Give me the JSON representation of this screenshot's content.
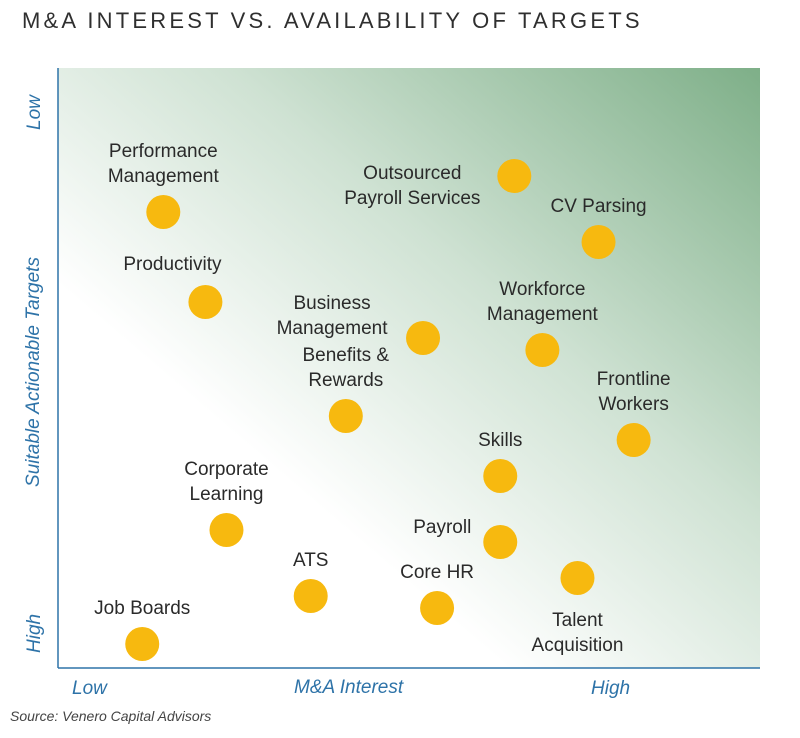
{
  "chart_data": {
    "type": "scatter",
    "title": "M&A INTEREST VS. AVAILABILITY OF TARGETS",
    "xlabel": "M&A Interest",
    "ylabel": "Suitable Actionable Targets",
    "x_tick_labels": {
      "low": "Low",
      "high": "High"
    },
    "y_tick_labels": {
      "top": "Low",
      "bottom": "High"
    },
    "xlim": [
      0,
      100
    ],
    "ylim": [
      0,
      100
    ],
    "y_axis_direction": "top is Low, bottom is High",
    "marker_color": "#f7b90f",
    "background_gradient": [
      "#ffffff",
      "#7eaf88"
    ],
    "axis_color": "#2e73a8",
    "points": [
      {
        "label": "Performance Management",
        "label_lines": [
          "Performance",
          "Management"
        ],
        "x": 15,
        "y": 76,
        "label_pos": "above"
      },
      {
        "label": "Outsourced Payroll Services",
        "label_lines": [
          "Outsourced",
          "Payroll Services"
        ],
        "x": 65,
        "y": 82,
        "label_pos": "left"
      },
      {
        "label": "CV Parsing",
        "label_lines": [
          "CV Parsing"
        ],
        "x": 77,
        "y": 71,
        "label_pos": "above"
      },
      {
        "label": "Productivity",
        "label_lines": [
          "Productivity"
        ],
        "x": 21,
        "y": 61,
        "label_pos": "above-left"
      },
      {
        "label": "Business Management",
        "label_lines": [
          "Business",
          "Management"
        ],
        "x": 52,
        "y": 55,
        "label_pos": "left"
      },
      {
        "label": "Workforce Management",
        "label_lines": [
          "Workforce",
          "Management"
        ],
        "x": 69,
        "y": 53,
        "label_pos": "above"
      },
      {
        "label": "Frontline Workers",
        "label_lines": [
          "Frontline",
          "Workers"
        ],
        "x": 82,
        "y": 38,
        "label_pos": "above"
      },
      {
        "label": "Benefits & Rewards",
        "label_lines": [
          "Benefits &",
          "Rewards"
        ],
        "x": 41,
        "y": 42,
        "label_pos": "above"
      },
      {
        "label": "Skills",
        "label_lines": [
          "Skills"
        ],
        "x": 63,
        "y": 32,
        "label_pos": "above"
      },
      {
        "label": "Payroll",
        "label_lines": [
          "Payroll"
        ],
        "x": 63,
        "y": 21,
        "label_pos": "left"
      },
      {
        "label": "Corporate Learning",
        "label_lines": [
          "Corporate",
          "Learning"
        ],
        "x": 24,
        "y": 23,
        "label_pos": "above"
      },
      {
        "label": "Talent Acquisition",
        "label_lines": [
          "Talent",
          "Acquisition"
        ],
        "x": 74,
        "y": 15,
        "label_pos": "below"
      },
      {
        "label": "Core HR",
        "label_lines": [
          "Core HR"
        ],
        "x": 54,
        "y": 10,
        "label_pos": "above"
      },
      {
        "label": "ATS",
        "label_lines": [
          "ATS"
        ],
        "x": 36,
        "y": 12,
        "label_pos": "above"
      },
      {
        "label": "Job Boards",
        "label_lines": [
          "Job Boards"
        ],
        "x": 12,
        "y": 4,
        "label_pos": "above"
      }
    ]
  },
  "source": "Source: Venero Capital Advisors"
}
